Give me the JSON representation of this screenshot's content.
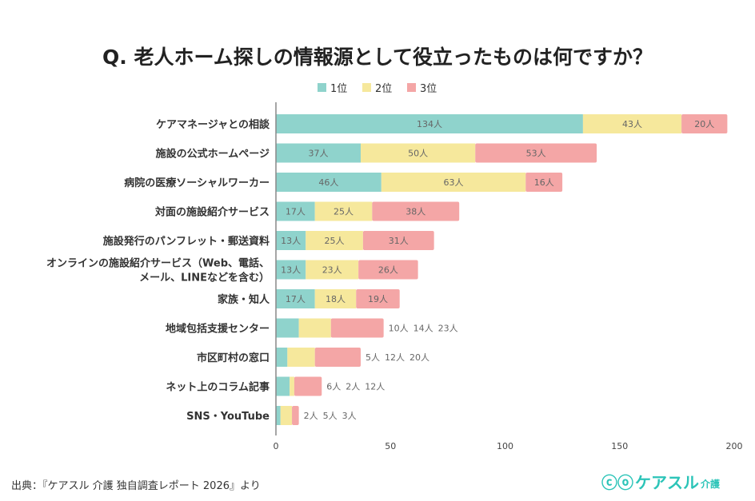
{
  "chart_data": {
    "type": "bar",
    "orientation": "horizontal",
    "stacked": true,
    "title": "Q. 老人ホーム探しの情報源として役立ったものは何ですか？",
    "categories": [
      "ケアマネージャとの相談",
      "施設の公式ホームページ",
      "病院の医療ソーシャルワーカー",
      "対面の施設紹介サービス",
      "施設発行のパンフレット・郵送資料",
      "オンラインの施設紹介サービス（Web、電話、|メール、LINEなどを含む）",
      "家族・知人",
      "地域包括支援センター",
      "市区町村の窓口",
      "ネット上のコラム記事",
      "SNS・YouTube"
    ],
    "series": [
      {
        "name": "1位",
        "color": "#8fd3cc",
        "values": [
          134,
          37,
          46,
          17,
          13,
          13,
          17,
          10,
          5,
          6,
          2
        ]
      },
      {
        "name": "2位",
        "color": "#f6e89c",
        "values": [
          43,
          50,
          63,
          25,
          25,
          23,
          18,
          14,
          12,
          2,
          5
        ]
      },
      {
        "name": "3位",
        "color": "#f4a6a6",
        "values": [
          20,
          53,
          16,
          38,
          31,
          26,
          19,
          23,
          20,
          12,
          3
        ]
      }
    ],
    "unit": "人",
    "xlim": [
      0,
      200
    ],
    "xticks": [
      0,
      50,
      100,
      150,
      200
    ],
    "legend": "top",
    "grid": false
  },
  "footer": {
    "source": "出典：『ケアスル 介護 独自調査レポート 2026』より",
    "logo_main": "ケアスル",
    "logo_sub": "介護"
  }
}
